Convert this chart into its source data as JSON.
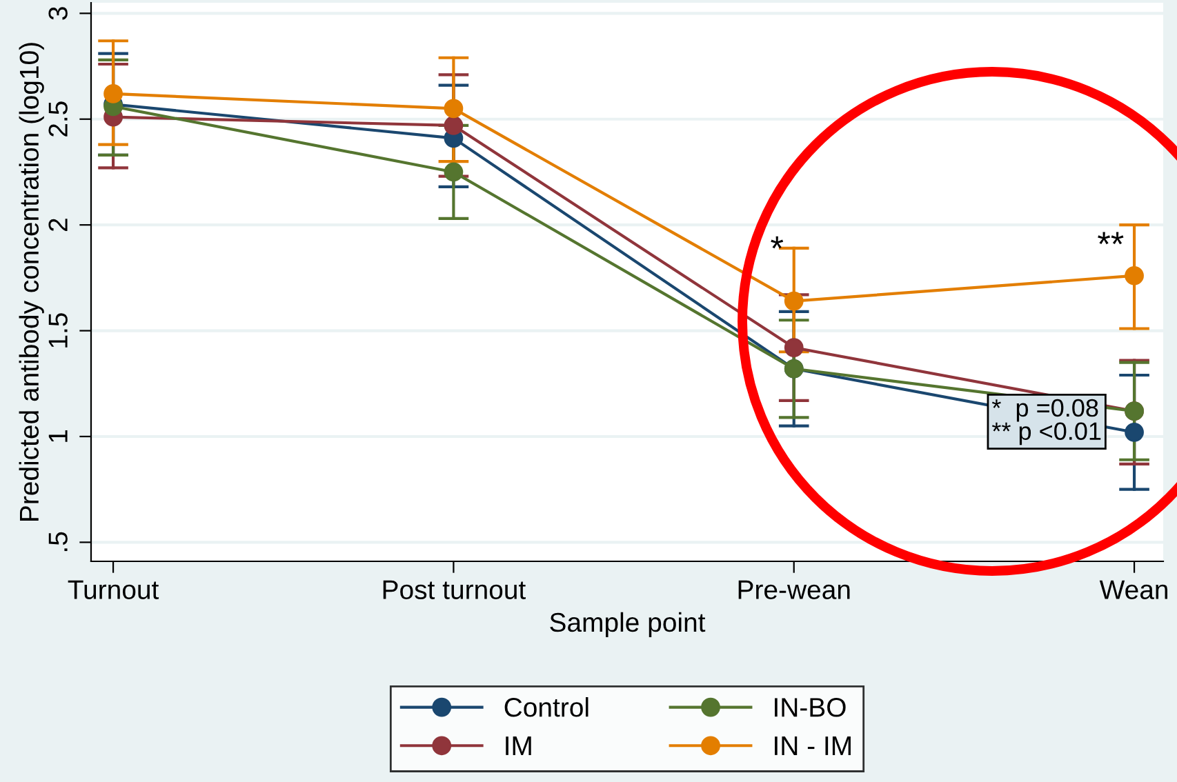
{
  "chart_data": {
    "type": "line",
    "xlabel": "Sample point",
    "ylabel": "Predicted antibody concentration (log10)",
    "categories": [
      "Turnout",
      "Post turnout",
      "Pre-wean",
      "Wean"
    ],
    "series": [
      {
        "name": "Control",
        "color": "#1a476f",
        "values": [
          2.57,
          2.41,
          1.32,
          1.02
        ],
        "errors": [
          [
            2.33,
            2.81
          ],
          [
            2.18,
            2.66
          ],
          [
            1.05,
            1.59
          ],
          [
            0.75,
            1.29
          ]
        ]
      },
      {
        "name": "IM",
        "color": "#90353b",
        "values": [
          2.51,
          2.47,
          1.42,
          1.12
        ],
        "errors": [
          [
            2.27,
            2.76
          ],
          0.24,
          0.25,
          [
            0.87,
            1.36
          ]
        ]
      },
      {
        "name": "IN-BO",
        "color": "#55752f",
        "values": [
          2.56,
          2.25,
          1.32,
          1.12
        ],
        "errors": [
          [
            2.33,
            2.78
          ],
          0.22,
          [
            1.09,
            1.55
          ],
          [
            0.89,
            1.35
          ]
        ]
      },
      {
        "name": "IN - IM",
        "color": "#e37e00",
        "values": [
          2.62,
          2.55,
          1.64,
          1.76
        ],
        "errors": [
          [
            2.38,
            2.87
          ],
          [
            2.3,
            2.79
          ],
          [
            1.4,
            1.89
          ],
          [
            1.51,
            2.0
          ]
        ]
      }
    ],
    "ylim": [
      0.41,
      3.05
    ],
    "yticks": [
      {
        "value": 0.5,
        "label": ".5"
      },
      1,
      1.5,
      2,
      2.5,
      3
    ],
    "grid": "y",
    "legend": "bottom",
    "marker": "circle",
    "line_style": "solid",
    "annotations": [
      {
        "text": "*",
        "x": "Pre-wean",
        "y": 1.8
      },
      {
        "text": "**",
        "x": "Wean",
        "y": 1.82
      },
      "*  p =0.08\n** p <0.01"
    ]
  }
}
